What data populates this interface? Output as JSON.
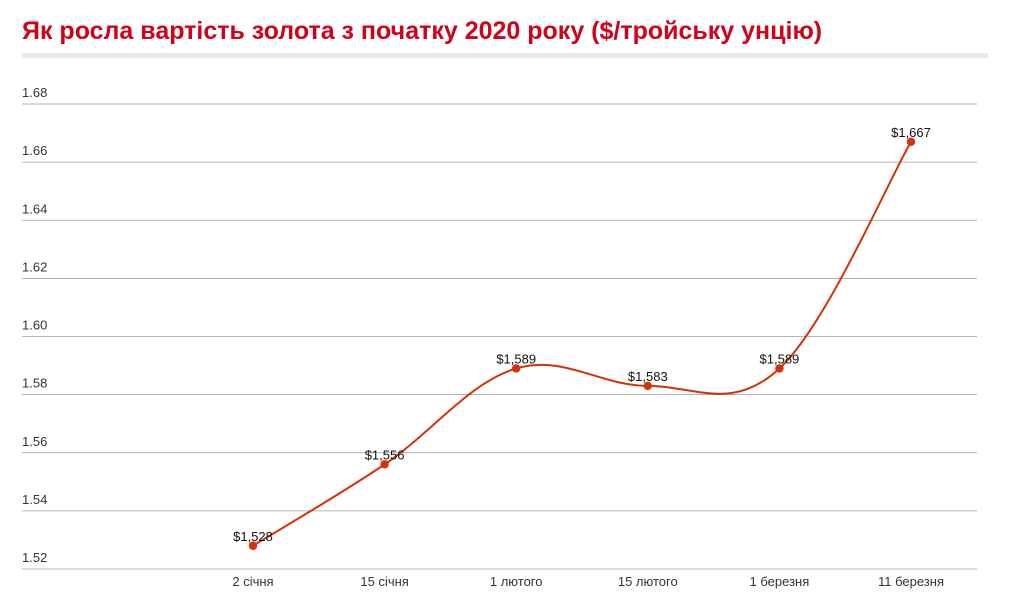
{
  "chart_data": {
    "type": "line",
    "title": "Як росла вартість золота з початку 2020 року ($/тройську унцію)",
    "xlabel": "",
    "ylabel": "",
    "categories": [
      "2 січня",
      "15 січня",
      "1 лютого",
      "15 лютого",
      "1 березня",
      "11 березня"
    ],
    "values": [
      1528,
      1556,
      1589,
      1583,
      1589,
      1667
    ],
    "data_labels": [
      "$1,528",
      "$1,556",
      "$1,589",
      "$1,583",
      "$1,589",
      "$1,667"
    ],
    "y_ticks": [
      1.52,
      1.54,
      1.56,
      1.58,
      1.6,
      1.62,
      1.64,
      1.66,
      1.68
    ],
    "y_tick_labels": [
      "1.52",
      "1.54",
      "1.56",
      "1.58",
      "1.60",
      "1.62",
      "1.64",
      "1.66",
      "1.68"
    ],
    "ylim": [
      1520,
      1680
    ],
    "y_display_scale": 1000,
    "grid": true,
    "legend": "none",
    "colors": {
      "title": "#d0021b",
      "line": "#d3330b",
      "marker": "#d3330b",
      "grid": "#9a9a9a",
      "title_rule": "#e9e9e9"
    }
  }
}
